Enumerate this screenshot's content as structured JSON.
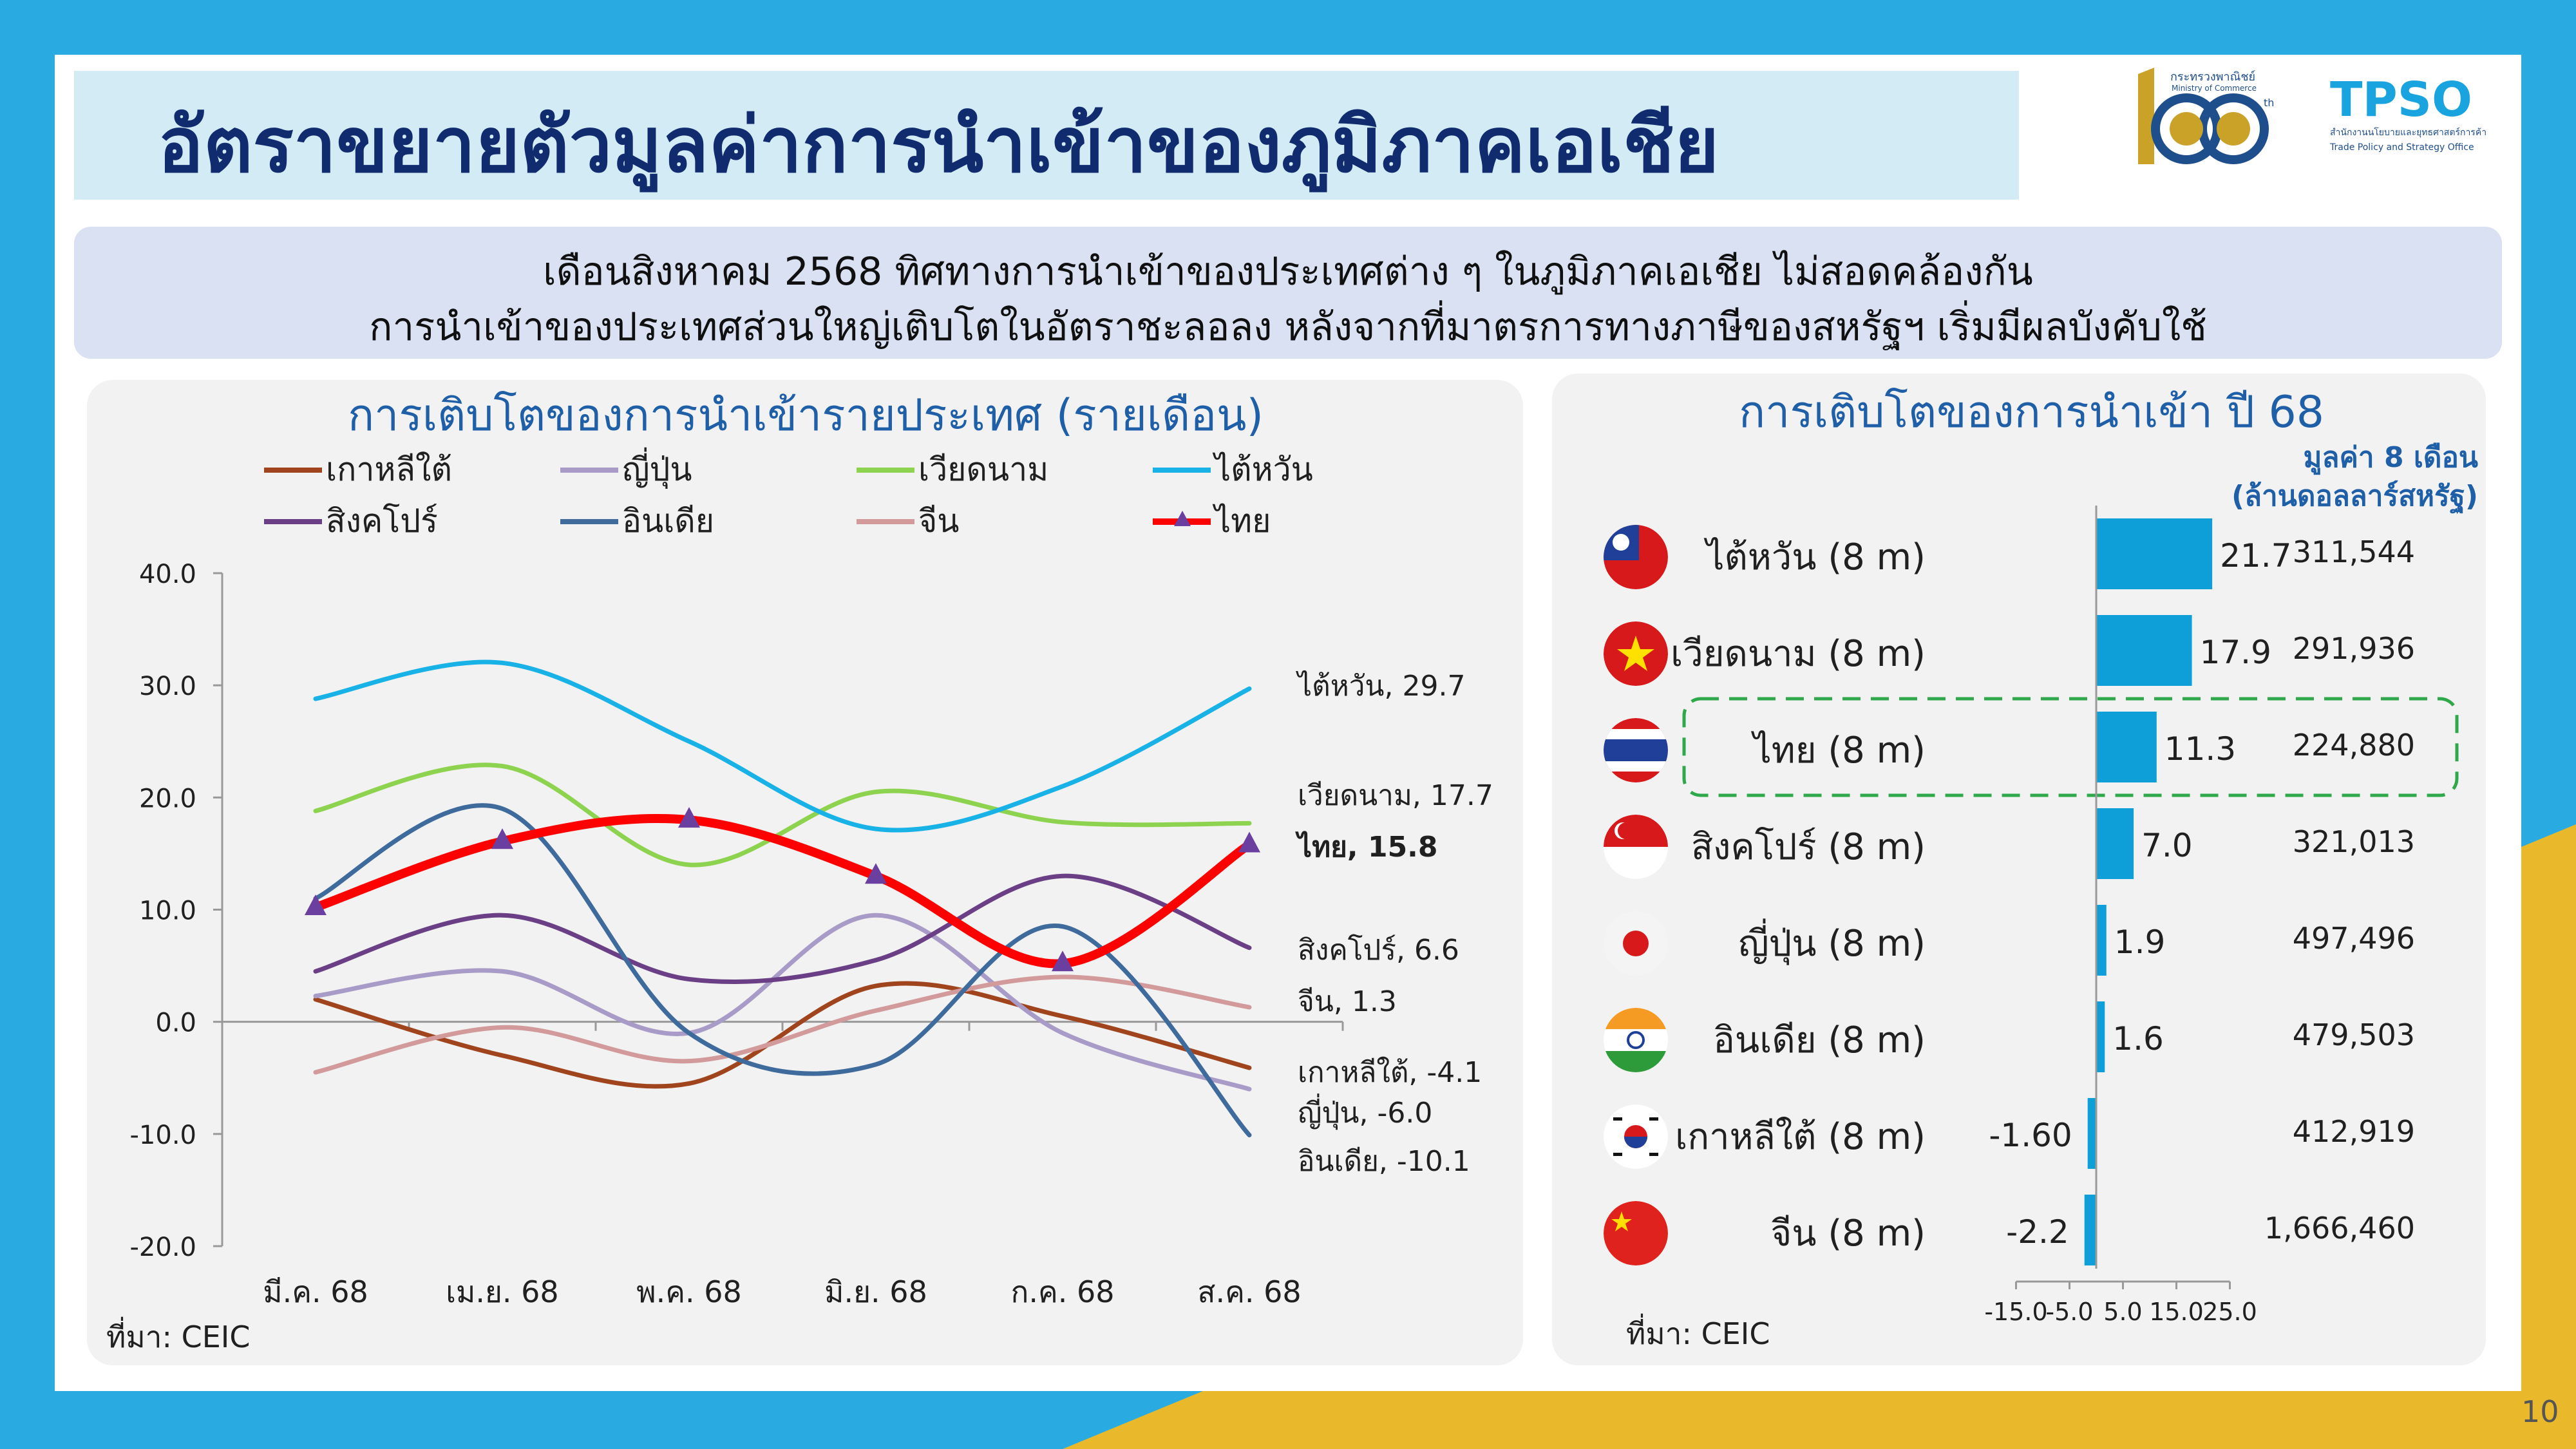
{
  "title": "อัตราขยายตัวมูลค่าการนำเข้าของภูมิภาคเอเชีย",
  "logos": {
    "ministry_top": "กระทรวงพาณิชย์",
    "ministry_sub": "Ministry of Commerce",
    "anniv": "105",
    "anniv_suffix": "th",
    "tpso": "TPSO",
    "tpso_th": "สำนักงานนโยบายและยุทธศาสตร์การค้า",
    "tpso_en": "Trade Policy and Strategy Office"
  },
  "summary": {
    "line1": "เดือนสิงหาคม 2568 ทิศทางการนำเข้าของประเทศต่าง ๆ ในภูมิภาคเอเชีย ไม่สอดคล้องกัน",
    "line2": "การนำเข้าของประเทศส่วนใหญ่เติบโตในอัตราชะลอลง หลังจากที่มาตรการทางภาษีของสหรัฐฯ เริ่มมีผลบังคับใช้"
  },
  "left_panel": {
    "title": "การเติบโตของการนำเข้ารายประเทศ (รายเดือน)",
    "source": "ที่มา: CEIC",
    "legend": [
      {
        "label": "เกาหลีใต้",
        "color": "#a0441e"
      },
      {
        "label": "ญี่ปุ่น",
        "color": "#a99bc7"
      },
      {
        "label": "เวียดนาม",
        "color": "#8ed34f"
      },
      {
        "label": "ไต้หวัน",
        "color": "#19b2e6"
      },
      {
        "label": "สิงคโปร์",
        "color": "#6b3f85"
      },
      {
        "label": "อินเดีย",
        "color": "#3e6a9c"
      },
      {
        "label": "จีน",
        "color": "#d29a9a"
      },
      {
        "label": "ไทย",
        "color": "#ff0000"
      }
    ]
  },
  "right_panel": {
    "title": "การเติบโตของการนำเข้า ปี 68",
    "unit_line1": "มูลค่า 8 เดือน",
    "unit_line2": "(ล้านดอลลาร์สหรัฐ)",
    "source": "ที่มา: CEIC"
  },
  "chart_data": [
    {
      "type": "line",
      "title": "การเติบโตของการนำเข้ารายประเทศ (รายเดือน)",
      "categories": [
        "มี.ค. 68",
        "เม.ย. 68",
        "พ.ค. 68",
        "มิ.ย. 68",
        "ก.ค. 68",
        "ส.ค. 68"
      ],
      "ylim": [
        -20,
        40
      ],
      "yticks": [
        "40.0",
        "30.0",
        "20.0",
        "10.0",
        "0.0",
        "-10.0",
        "-20.0"
      ],
      "series": [
        {
          "name": "เกาหลีใต้",
          "values": [
            2.0,
            -3.0,
            -5.5,
            3.2,
            0.5,
            -4.1
          ],
          "end_label": "เกาหลีใต้, -4.1"
        },
        {
          "name": "ญี่ปุ่น",
          "values": [
            2.3,
            4.5,
            -1.0,
            9.5,
            -1.0,
            -6.0
          ],
          "end_label": "ญี่ปุ่น, -6.0"
        },
        {
          "name": "เวียดนาม",
          "values": [
            18.8,
            22.8,
            14.0,
            20.5,
            17.8,
            17.7
          ],
          "end_label": "เวียดนาม, 17.7"
        },
        {
          "name": "ไต้หวัน",
          "values": [
            28.8,
            32.0,
            25.0,
            17.2,
            21.0,
            29.7
          ],
          "end_label": "ไต้หวัน, 29.7"
        },
        {
          "name": "สิงคโปร์",
          "values": [
            4.5,
            9.5,
            3.8,
            5.5,
            13.0,
            6.6
          ],
          "end_label": "สิงคโปร์, 6.6"
        },
        {
          "name": "อินเดีย",
          "values": [
            11.0,
            19.0,
            -1.0,
            -3.8,
            8.5,
            -10.1
          ],
          "end_label": "อินเดีย, -10.1"
        },
        {
          "name": "จีน",
          "values": [
            -4.5,
            -0.5,
            -3.5,
            1.0,
            4.0,
            1.3
          ],
          "end_label": "จีน, 1.3"
        },
        {
          "name": "ไทย",
          "values": [
            10.2,
            16.1,
            18.0,
            13.0,
            5.2,
            15.8
          ],
          "end_label": "ไทย, 15.8"
        }
      ]
    },
    {
      "type": "bar",
      "orientation": "horizontal",
      "title": "การเติบโตของการนำเข้า ปี 68",
      "categories": [
        "ไต้หวัน (8 m)",
        "เวียดนาม (8 m)",
        "ไทย (8 m)",
        "สิงคโปร์ (8 m)",
        "ญี่ปุ่น (8 m)",
        "อินเดีย (8 m)",
        "เกาหลีใต้ (8 m)",
        "จีน (8 m)"
      ],
      "values": [
        21.7,
        17.9,
        11.3,
        7.0,
        1.9,
        1.6,
        -1.6,
        -2.2
      ],
      "value_labels": [
        "21.7",
        "17.9",
        "11.3",
        "7.0",
        "1.9",
        "1.6",
        "-1.60",
        "-2.2"
      ],
      "amounts": [
        "311,544",
        "291,936",
        "224,880",
        "321,013",
        "497,496",
        "479,503",
        "412,919",
        "1,666,460"
      ],
      "xlim": [
        -15,
        25
      ],
      "xticks": [
        "-15.0",
        "-5.0",
        "5.0",
        "15.0",
        "25.0"
      ],
      "highlight": "ไทย (8 m)"
    }
  ],
  "page_number": "10"
}
